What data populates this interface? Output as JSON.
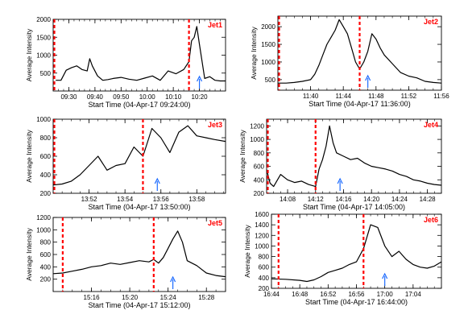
{
  "colors": {
    "curve": "#000000",
    "marker_line": "#ff0000",
    "jet_label": "#ff0000",
    "arrow": "#1e6cff"
  },
  "chart_data": [
    {
      "type": "line",
      "label": "Jet1",
      "xlabel": "Start Time (04-Apr-17 09:24:00)",
      "ylabel": "Average Intensity",
      "xlim": [
        "09:24",
        "10:30"
      ],
      "ylim": [
        0,
        2000
      ],
      "xticks": [
        "09:30",
        "09:40",
        "09:50",
        "10:00",
        "10:10",
        "10:20"
      ],
      "yticks": [
        500,
        1000,
        1500,
        2000
      ],
      "markers": [
        "09:24",
        "10:16"
      ],
      "arrow": "10:20",
      "x": [
        "09:25",
        "09:27",
        "09:29",
        "09:31",
        "09:33",
        "09:35",
        "09:37",
        "09:38",
        "09:39",
        "09:41",
        "09:43",
        "09:45",
        "09:47",
        "09:50",
        "09:53",
        "09:56",
        "09:59",
        "10:02",
        "10:05",
        "10:08",
        "10:11",
        "10:14",
        "10:16",
        "10:17",
        "10:18",
        "10:19",
        "10:20",
        "10:22",
        "10:24",
        "10:26",
        "10:28",
        "10:30"
      ],
      "y": [
        300,
        300,
        580,
        650,
        700,
        600,
        560,
        900,
        700,
        420,
        300,
        320,
        350,
        380,
        330,
        300,
        360,
        420,
        300,
        560,
        480,
        600,
        820,
        1400,
        1500,
        1800,
        1300,
        350,
        400,
        300,
        280,
        280
      ]
    },
    {
      "type": "line",
      "label": "Jet2",
      "xlabel": "Start Time (04-Apr-17 11:36:00)",
      "ylabel": "Average Intensity",
      "xlim": [
        "11:36",
        "11:56"
      ],
      "ylim": [
        200,
        2300
      ],
      "xticks": [
        "11:40",
        "11:44",
        "11:48",
        "11:52",
        "11:56"
      ],
      "yticks": [
        500,
        1000,
        1500,
        2000
      ],
      "markers": [
        "11:36",
        "11:46"
      ],
      "arrow": "11:47",
      "x": [
        "11:36",
        "11:37",
        "11:38",
        "11:39",
        "11:40",
        "11:40.5",
        "11:41",
        "11:41.5",
        "11:42",
        "11:42.5",
        "11:43",
        "11:43.5",
        "11:44",
        "11:44.5",
        "11:45",
        "11:45.5",
        "11:46",
        "11:46.5",
        "11:47",
        "11:47.5",
        "11:48",
        "11:48.5",
        "11:49",
        "11:50",
        "11:51",
        "11:52",
        "11:53",
        "11:54",
        "11:55",
        "11:56"
      ],
      "y": [
        400,
        400,
        420,
        450,
        500,
        650,
        900,
        1200,
        1500,
        1700,
        1900,
        2200,
        2000,
        1800,
        1400,
        1000,
        800,
        1000,
        1300,
        1800,
        1650,
        1400,
        1200,
        950,
        700,
        600,
        550,
        450,
        420,
        400
      ]
    },
    {
      "type": "line",
      "label": "Jet3",
      "xlabel": "Start Time (04-Apr-17 13:50:00)",
      "ylabel": "Average Intensity",
      "xlim": [
        "13:50",
        "13:59.6"
      ],
      "ylim": [
        200,
        1000
      ],
      "xticks": [
        "13:52",
        "13:54",
        "13:56",
        "13:58"
      ],
      "yticks": [
        200,
        400,
        600,
        800,
        1000
      ],
      "markers": [
        "13:50",
        "13:55"
      ],
      "arrow": "13:55.8",
      "x": [
        "13:50",
        "13:50.5",
        "13:51",
        "13:51.5",
        "13:52",
        "13:52.5",
        "13:53",
        "13:53.5",
        "13:54",
        "13:54.5",
        "13:55",
        "13:55.5",
        "13:56",
        "13:56.5",
        "13:57",
        "13:57.5",
        "13:58",
        "13:58.5",
        "13:59",
        "13:59.6"
      ],
      "y": [
        290,
        300,
        330,
        400,
        500,
        600,
        450,
        500,
        520,
        700,
        600,
        900,
        800,
        640,
        860,
        930,
        820,
        800,
        780,
        760
      ]
    },
    {
      "type": "line",
      "label": "Jet4",
      "xlabel": "Start Time (04-Apr-17 14:05:00)",
      "ylabel": "Average Intensity",
      "xlim": [
        "14:05",
        "14:30"
      ],
      "ylim": [
        200,
        1300
      ],
      "xticks": [
        "14:08",
        "14:12",
        "14:16",
        "14:20",
        "14:24",
        "14:28"
      ],
      "yticks": [
        200,
        400,
        600,
        800,
        1000,
        1200
      ],
      "markers": [
        "14:05",
        "14:12"
      ],
      "arrow": "14:15.5",
      "x": [
        "14:05",
        "14:05.5",
        "14:06",
        "14:07",
        "14:08",
        "14:09",
        "14:10",
        "14:11",
        "14:12",
        "14:12.5",
        "14:13",
        "14:13.5",
        "14:14",
        "14:14.5",
        "14:15",
        "14:16",
        "14:17",
        "14:18",
        "14:19",
        "14:20",
        "14:21",
        "14:22",
        "14:23",
        "14:24",
        "14:25",
        "14:26",
        "14:27",
        "14:28",
        "14:29",
        "14:30"
      ],
      "y": [
        550,
        350,
        300,
        480,
        400,
        360,
        380,
        330,
        300,
        560,
        700,
        900,
        1200,
        950,
        800,
        750,
        700,
        720,
        650,
        600,
        580,
        560,
        530,
        480,
        450,
        400,
        380,
        350,
        330,
        320
      ]
    },
    {
      "type": "line",
      "label": "Jet5",
      "xlabel": "Start Time (04-Apr-17 15:12:00)",
      "ylabel": "Average Intensity",
      "xlim": [
        "15:12",
        "15:30"
      ],
      "ylim": [
        0,
        1200
      ],
      "xticks": [
        "15:16",
        "15:20",
        "15:24",
        "15:28"
      ],
      "yticks": [
        200,
        400,
        600,
        800,
        1000,
        1200
      ],
      "markers": [
        "15:13",
        "15:22.5"
      ],
      "arrow": "15:24.5",
      "x": [
        "15:12",
        "15:13",
        "15:14",
        "15:15",
        "15:16",
        "15:17",
        "15:18",
        "15:19",
        "15:20",
        "15:21",
        "15:22",
        "15:22.5",
        "15:23",
        "15:23.5",
        "15:24",
        "15:24.5",
        "15:25",
        "15:25.5",
        "15:26",
        "15:27",
        "15:28",
        "15:29",
        "15:30"
      ],
      "y": [
        290,
        300,
        330,
        360,
        400,
        420,
        460,
        440,
        470,
        500,
        480,
        520,
        460,
        550,
        700,
        850,
        980,
        800,
        500,
        420,
        300,
        260,
        240
      ]
    },
    {
      "type": "line",
      "label": "Jet6",
      "xlabel": "Start Time (04-Apr-17 16:44:00)",
      "ylabel": "Average Intensity",
      "xlim": [
        "16:44",
        "17:08"
      ],
      "ylim": [
        200,
        1600
      ],
      "xticks": [
        "16:44",
        "16:48",
        "16:52",
        "16:56",
        "17:00",
        "17:04"
      ],
      "yticks": [
        200,
        400,
        600,
        800,
        1000,
        1200,
        1400,
        1600
      ],
      "markers": [
        "16:45",
        "16:57"
      ],
      "arrow": "17:00",
      "x": [
        "16:44",
        "16:46",
        "16:48",
        "16:49",
        "16:50",
        "16:51",
        "16:52",
        "16:53",
        "16:54",
        "16:55",
        "16:56",
        "16:57",
        "16:58",
        "16:59",
        "17:00",
        "17:01",
        "17:02",
        "17:03",
        "17:04",
        "17:05",
        "17:06",
        "17:07",
        "17:08"
      ],
      "y": [
        380,
        370,
        350,
        330,
        360,
        420,
        500,
        540,
        580,
        650,
        700,
        950,
        1400,
        1350,
        1000,
        800,
        900,
        750,
        650,
        600,
        580,
        620,
        700
      ]
    }
  ]
}
